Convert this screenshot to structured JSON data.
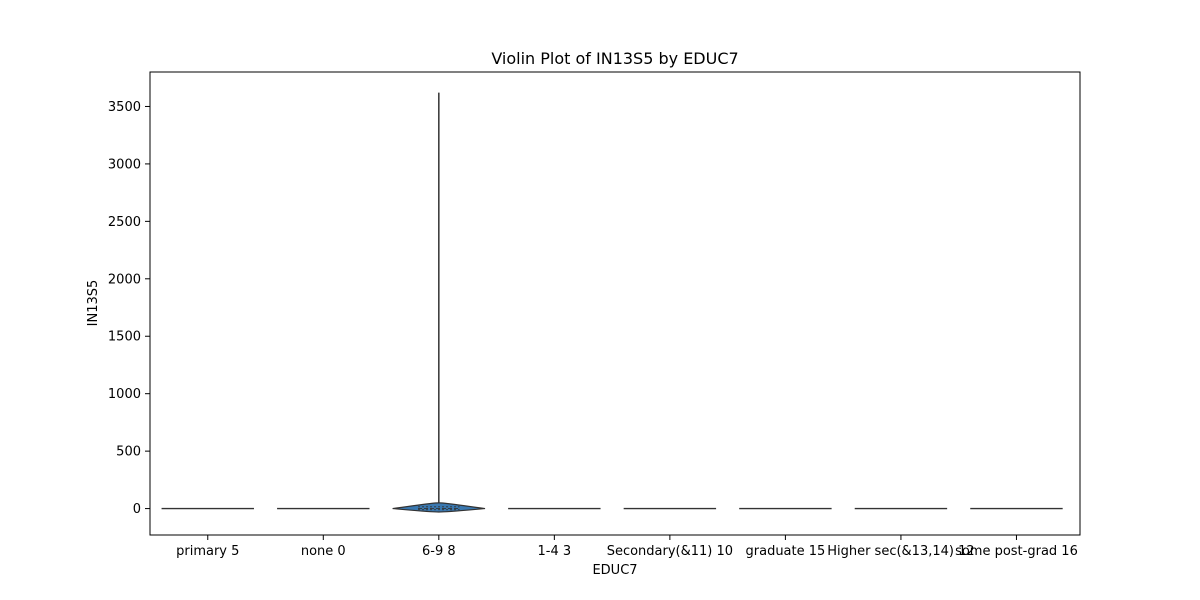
{
  "chart_data": {
    "type": "violin",
    "title": "Violin Plot of IN13S5 by EDUC7",
    "xlabel": "EDUC7",
    "ylabel": "IN13S5",
    "categories": [
      "primary 5",
      "none 0",
      "6-9 8",
      "1-4 3",
      "Secondary(&11) 10",
      "graduate 15",
      "Higher sec(&13,14) 12",
      "some post-grad 16"
    ],
    "yticks": [
      0,
      500,
      1000,
      1500,
      2000,
      2500,
      3000,
      3500
    ],
    "ylim": [
      -230,
      3800
    ],
    "grid": false,
    "legend": "none",
    "fill_color": "#3a78b0",
    "line_color": "#333333",
    "series": [
      {
        "category": "primary 5",
        "min": 0,
        "max": 0,
        "median": 0
      },
      {
        "category": "none 0",
        "min": 0,
        "max": 0,
        "median": 0
      },
      {
        "category": "6-9 8",
        "min": -30,
        "max": 3620,
        "q1": -10,
        "median": 0,
        "q3": 15,
        "peak_value": 15
      },
      {
        "category": "1-4 3",
        "min": 0,
        "max": 0,
        "median": 0
      },
      {
        "category": "Secondary(&11) 10",
        "min": 0,
        "max": 0,
        "median": 0
      },
      {
        "category": "graduate 15",
        "min": 0,
        "max": 0,
        "median": 0
      },
      {
        "category": "Higher sec(&13,14) 12",
        "min": 0,
        "max": 0,
        "median": 0
      },
      {
        "category": "some post-grad 16",
        "min": 0,
        "max": 0,
        "median": 0
      }
    ]
  }
}
